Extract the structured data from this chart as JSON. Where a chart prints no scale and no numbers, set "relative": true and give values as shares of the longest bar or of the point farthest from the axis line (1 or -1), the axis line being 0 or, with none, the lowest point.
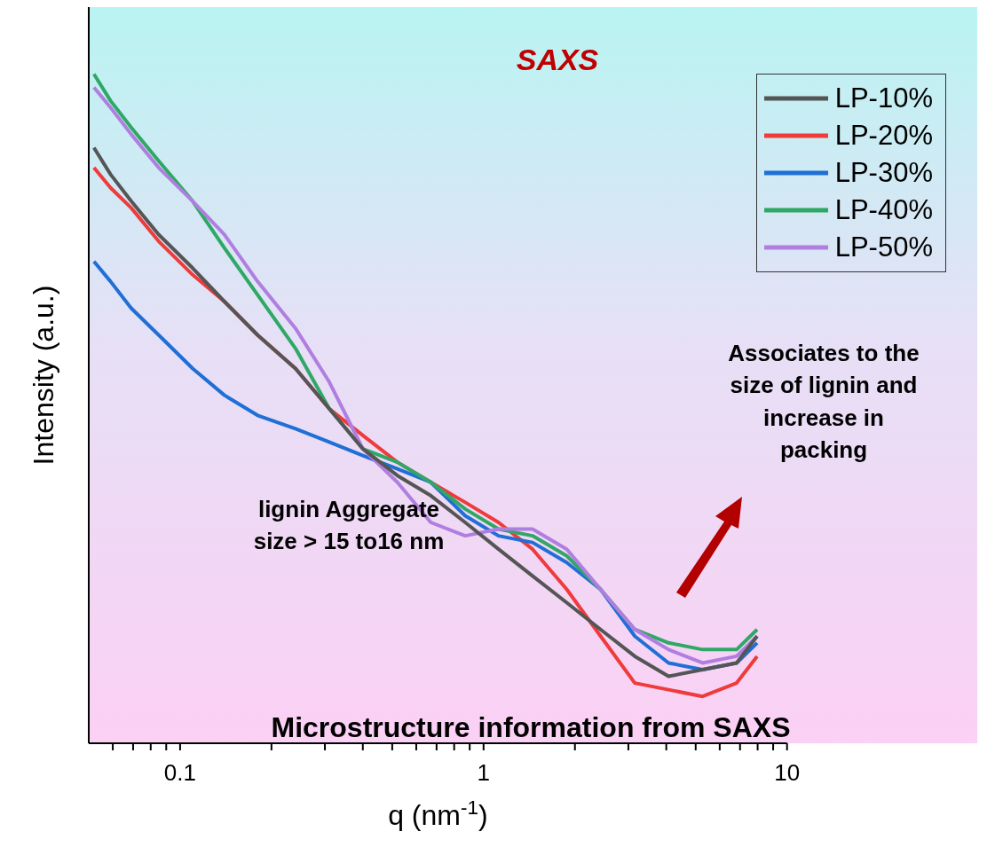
{
  "chart_data": {
    "type": "line",
    "relative": true,
    "log": "x",
    "title": "SAXS",
    "xlabel": "q (nm$^{-1}$)",
    "ylabel": "Intensity (a.u.)",
    "annotations": [
      "Associates to the size of lignin and increase in packing",
      "lignin Aggregate size > 15 to16 nm",
      "Microstructure information from SAXS"
    ],
    "xlim": [
      0.05,
      10
    ],
    "xticks": [
      {
        "value": 0.06,
        "label": null
      },
      {
        "value": 0.07,
        "label": null
      },
      {
        "value": 0.08,
        "label": null
      },
      {
        "value": 0.09,
        "label": null
      },
      0.1,
      {
        "value": 0.2,
        "label": null
      },
      {
        "value": 0.3,
        "label": null
      },
      {
        "value": 0.4,
        "label": null
      },
      {
        "value": 0.5,
        "label": null
      },
      {
        "value": 0.6,
        "label": null
      },
      {
        "value": 0.7,
        "label": null
      },
      {
        "value": 0.8,
        "label": null
      },
      {
        "value": 0.9,
        "label": null
      },
      1,
      {
        "value": 2,
        "label": null
      },
      {
        "value": 3,
        "label": null
      },
      {
        "value": 4,
        "label": null
      },
      {
        "value": 5,
        "label": null
      },
      {
        "value": 6,
        "label": null
      },
      {
        "value": 7,
        "label": null
      },
      {
        "value": 8,
        "label": null
      },
      {
        "value": 9,
        "label": null
      },
      10
    ],
    "x": [
      0.052,
      0.059,
      0.069,
      0.085,
      0.11,
      0.14,
      0.18,
      0.24,
      0.31,
      0.4,
      0.52,
      0.67,
      0.87,
      1.12,
      1.45,
      1.88,
      2.43,
      3.15,
      4.07,
      5.27,
      6.82,
      7.97
    ],
    "grid": false,
    "legend": "top right",
    "marker": "none",
    "line_style": "solid",
    "series": [
      {
        "name": "LP-10%",
        "color": "#555555",
        "values": [
          0.89,
          0.85,
          0.81,
          0.76,
          0.71,
          0.66,
          0.61,
          0.56,
          0.5,
          0.44,
          0.4,
          0.37,
          0.33,
          0.29,
          0.25,
          0.21,
          0.17,
          0.13,
          0.1,
          0.11,
          0.12,
          0.16
        ]
      },
      {
        "name": "LP-20%",
        "color": "#ef3b3b",
        "values": [
          0.86,
          0.83,
          0.8,
          0.75,
          0.7,
          0.66,
          0.61,
          0.56,
          0.5,
          0.46,
          0.42,
          0.39,
          0.36,
          0.33,
          0.29,
          0.23,
          0.16,
          0.09,
          0.08,
          0.07,
          0.09,
          0.13
        ]
      },
      {
        "name": "LP-30%",
        "color": "#1f6fd6",
        "values": [
          0.72,
          0.69,
          0.65,
          0.61,
          0.56,
          0.52,
          0.49,
          0.47,
          0.45,
          0.43,
          0.41,
          0.39,
          0.34,
          0.31,
          0.3,
          0.27,
          0.23,
          0.16,
          0.12,
          0.11,
          0.12,
          0.15
        ]
      },
      {
        "name": "LP-40%",
        "color": "#2fa866",
        "values": [
          1,
          0.96,
          0.92,
          0.87,
          0.81,
          0.74,
          0.67,
          0.59,
          0.5,
          0.44,
          0.42,
          0.39,
          0.35,
          0.32,
          0.31,
          0.28,
          0.23,
          0.17,
          0.15,
          0.14,
          0.14,
          0.17
        ]
      },
      {
        "name": "LP-50%",
        "color": "#b07ee0",
        "values": [
          0.98,
          0.95,
          0.91,
          0.86,
          0.81,
          0.76,
          0.69,
          0.62,
          0.54,
          0.44,
          0.39,
          0.33,
          0.31,
          0.32,
          0.32,
          0.29,
          0.23,
          0.17,
          0.14,
          0.12,
          0.13,
          0.16
        ]
      }
    ]
  }
}
